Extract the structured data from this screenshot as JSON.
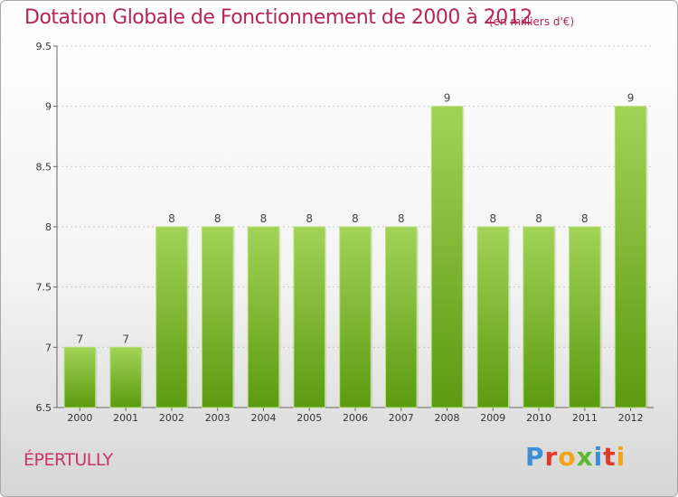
{
  "header": {
    "title": "Dotation Globale de Fonctionnement de 2000 à 2012",
    "subtitle": "(en milliers d'€)"
  },
  "location": "ÉPERTULLY",
  "logo": {
    "letters": [
      "P",
      "r",
      "o",
      "x",
      "i",
      "t",
      "i"
    ]
  },
  "colors": {
    "bar_light": "#9ccf4f",
    "bar_dark": "#5f9e12",
    "title": "#b8245a"
  },
  "chart_data": {
    "type": "bar",
    "title": "Dotation Globale de Fonctionnement de 2000 à 2012",
    "subtitle": "(en milliers d'€)",
    "xlabel": "",
    "ylabel": "",
    "categories": [
      "2000",
      "2001",
      "2002",
      "2003",
      "2004",
      "2005",
      "2006",
      "2007",
      "2008",
      "2009",
      "2010",
      "2011",
      "2012"
    ],
    "values": [
      7,
      7,
      8,
      8,
      8,
      8,
      8,
      8,
      9,
      8,
      8,
      8,
      9
    ],
    "data_labels": [
      "7",
      "7",
      "8",
      "8",
      "8",
      "8",
      "8",
      "8",
      "9",
      "8",
      "8",
      "8",
      "9"
    ],
    "ylim": [
      6.5,
      9.5
    ],
    "yticks": [
      6.5,
      7,
      7.5,
      8,
      8.5,
      9,
      9.5
    ],
    "ytick_labels": [
      "6.5",
      "7",
      "7.5",
      "8",
      "8.5",
      "9",
      "9.5"
    ],
    "grid": "horizontal-dotted",
    "legend": "none"
  }
}
